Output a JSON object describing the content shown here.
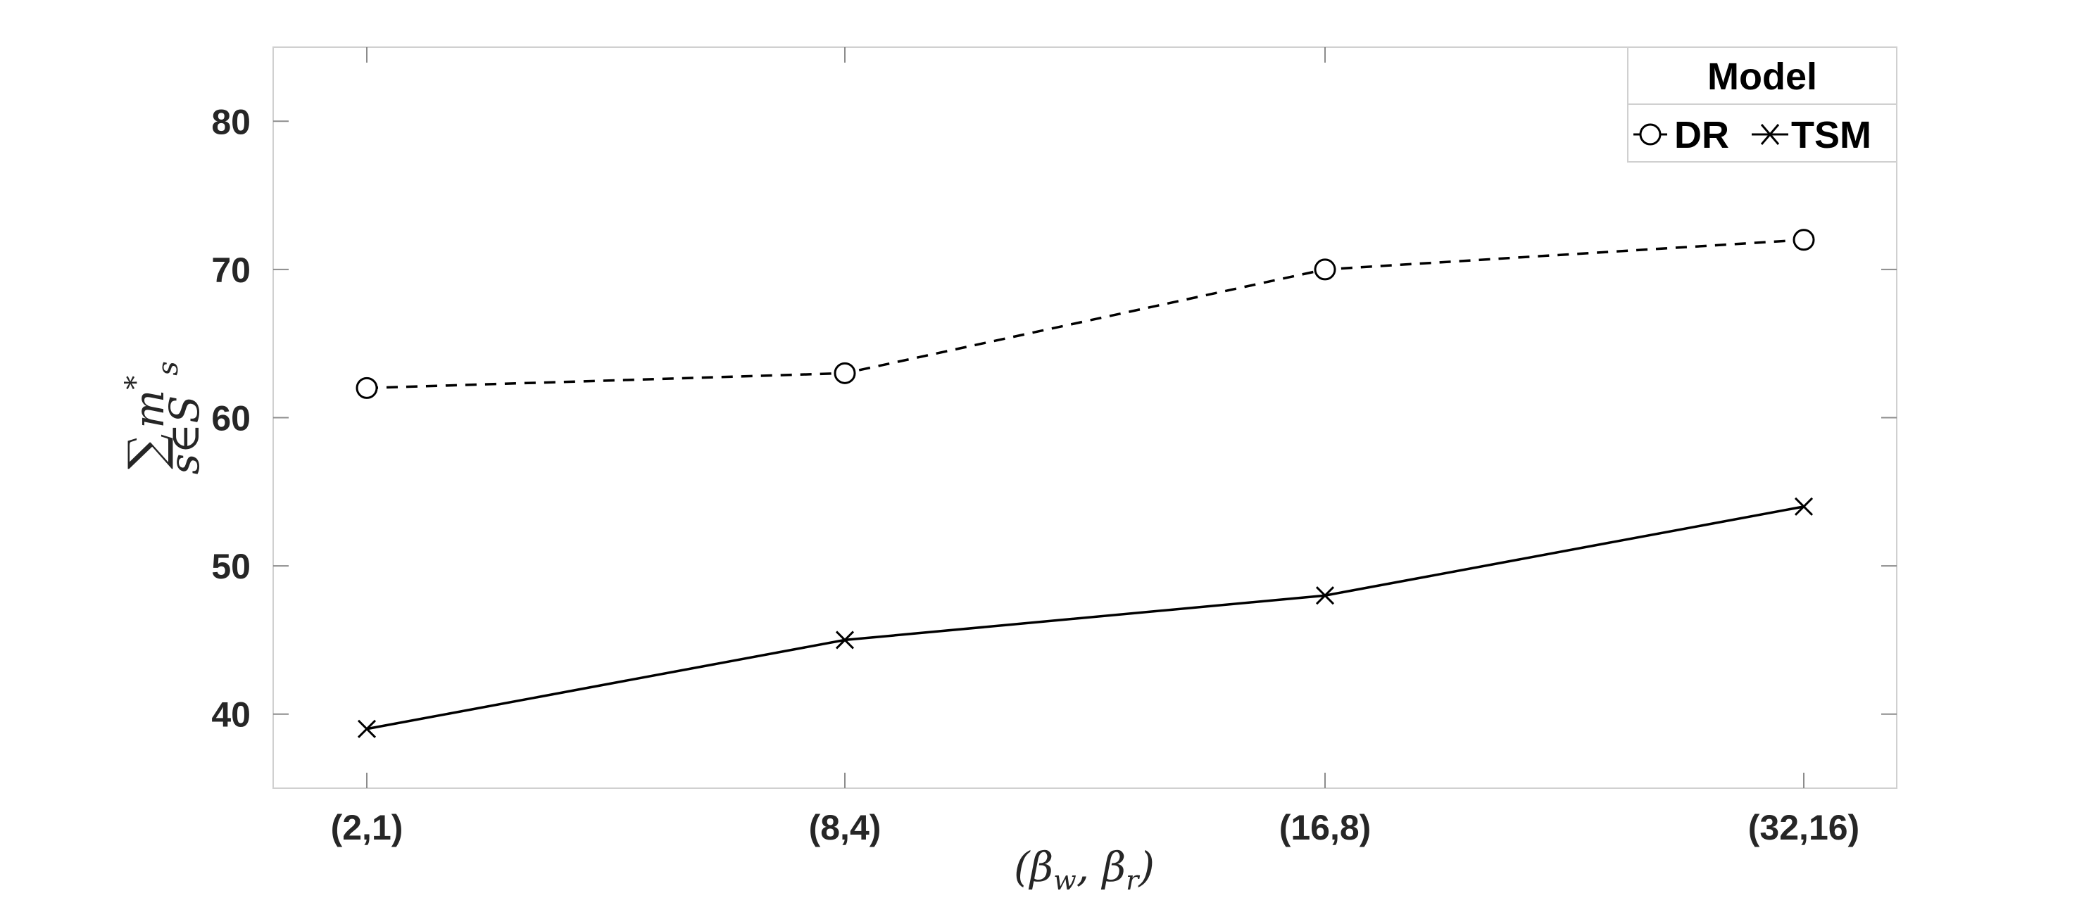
{
  "chart_data": {
    "type": "line",
    "categories": [
      "(2,1)",
      "(8,4)",
      "(16,8)",
      "(32,16)"
    ],
    "series": [
      {
        "name": "DR",
        "values": [
          62,
          63,
          70,
          72
        ],
        "marker": "circle",
        "line_style": "dashed",
        "color": "#000000"
      },
      {
        "name": "TSM",
        "values": [
          39,
          45,
          48,
          54
        ],
        "marker": "x",
        "line_style": "solid",
        "color": "#000000"
      }
    ],
    "xlabel": "(βw, βr)",
    "xlabel_parts": {
      "main": "β",
      "sub1": "w",
      "mid": ", β",
      "sub2": "r"
    },
    "ylabel": "Σ_{s∈S} m*_s",
    "ylabel_parts": {
      "sum": "∑",
      "sub": "s∈S",
      "var": "m",
      "sup": "*",
      "varsub": "s"
    },
    "ylim": [
      35,
      85
    ],
    "yticks": [
      40,
      50,
      60,
      70,
      80
    ],
    "legend": {
      "title": "Model",
      "placement": "top-right",
      "orientation": "horizontal"
    },
    "grid": false
  }
}
